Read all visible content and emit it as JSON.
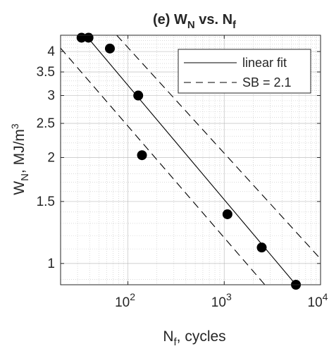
{
  "chart_data": {
    "type": "scatter",
    "title": "(e) W_N vs. N_f",
    "title_parts": {
      "prefix": "(e) W",
      "sub1": "N",
      "mid": " vs. N",
      "sub2": "f"
    },
    "xlabel": "N_f, cycles",
    "xlabel_parts": {
      "main": "N",
      "sub": "f",
      "rest": ", cycles"
    },
    "ylabel": "W_N, MJ/m^3",
    "ylabel_parts": {
      "main": "W",
      "sub": "N",
      "mid": ", MJ/m",
      "sup": "3"
    },
    "xscale": "log",
    "yscale": "log",
    "xlim": [
      20,
      10000
    ],
    "ylim": [
      0.87,
      4.45
    ],
    "xticks": [
      {
        "value": 100,
        "base": "10",
        "exp": "2"
      },
      {
        "value": 1000,
        "base": "10",
        "exp": "3"
      },
      {
        "value": 10000,
        "base": "10",
        "exp": "4"
      }
    ],
    "yticks": [
      {
        "value": 1,
        "label": "1"
      },
      {
        "value": 1.5,
        "label": "1.5"
      },
      {
        "value": 2,
        "label": "2"
      },
      {
        "value": 2.5,
        "label": "2.5"
      },
      {
        "value": 3,
        "label": "3"
      },
      {
        "value": 3.5,
        "label": "3.5"
      },
      {
        "value": 4,
        "label": "4"
      }
    ],
    "grid": true,
    "minor_grid": true,
    "legend_position": "top-right",
    "points": [
      {
        "x": 33,
        "y": 4.38
      },
      {
        "x": 39,
        "y": 4.38
      },
      {
        "x": 65,
        "y": 4.08
      },
      {
        "x": 128,
        "y": 3.0
      },
      {
        "x": 140,
        "y": 2.03
      },
      {
        "x": 1080,
        "y": 1.38
      },
      {
        "x": 2450,
        "y": 1.11
      },
      {
        "x": 5550,
        "y": 0.87
      }
    ],
    "series": [
      {
        "name": "linear fit",
        "style": "solid",
        "x": [
          36.5,
          5550
        ],
        "y": [
          4.45,
          0.87
        ]
      },
      {
        "name": "SB = 2.1",
        "style": "dashed",
        "x": [
          76.5,
          10000
        ],
        "y": [
          4.45,
          1.03
        ]
      },
      {
        "name": "",
        "style": "dashed",
        "x": [
          20,
          2640
        ],
        "y": [
          4.09,
          0.87
        ]
      }
    ],
    "colors": {
      "markers": "#000000",
      "lines": "#000000",
      "grid": "#b4b4b4",
      "text": "#262626"
    }
  }
}
